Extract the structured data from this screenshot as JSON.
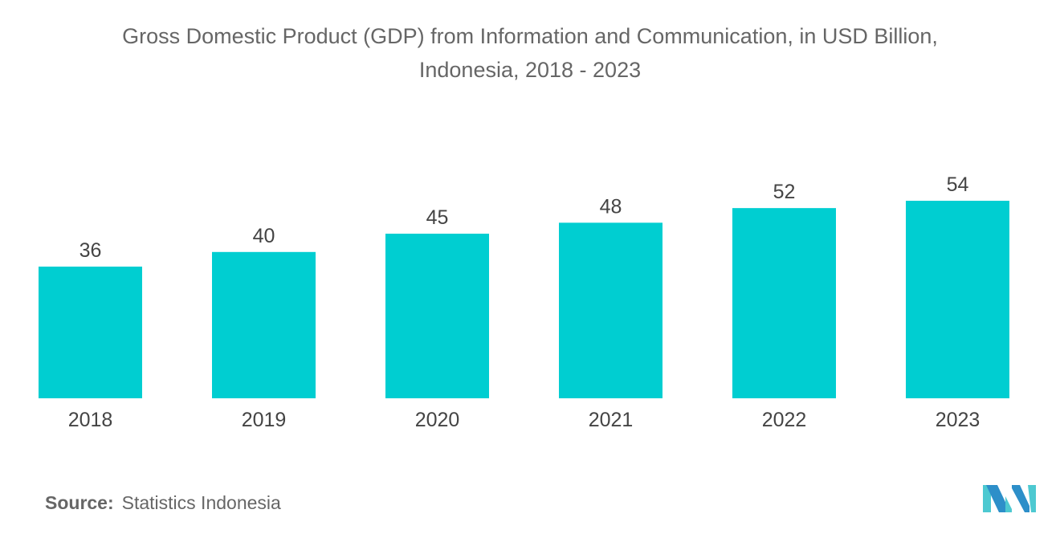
{
  "chart_data": {
    "type": "bar",
    "title": "Gross Domestic Product (GDP) from Information and Communication, in USD Billion, Indonesia, 2018 - 2023",
    "title_lines": [
      "Gross Domestic Product (GDP) from Information and Communication, in USD Billion,",
      "Indonesia, 2018 - 2023"
    ],
    "categories": [
      "2018",
      "2019",
      "2020",
      "2021",
      "2022",
      "2023"
    ],
    "values": [
      36,
      40,
      45,
      48,
      52,
      54
    ],
    "xlabel": "",
    "ylabel": "",
    "ylim": [
      0,
      60
    ],
    "grid": false,
    "bar_color": "#00CED1"
  },
  "source": {
    "label": "Source:",
    "text": "Statistics Indonesia"
  },
  "logo": {
    "colors": [
      "#2D8FC9",
      "#4DC9D1"
    ]
  }
}
